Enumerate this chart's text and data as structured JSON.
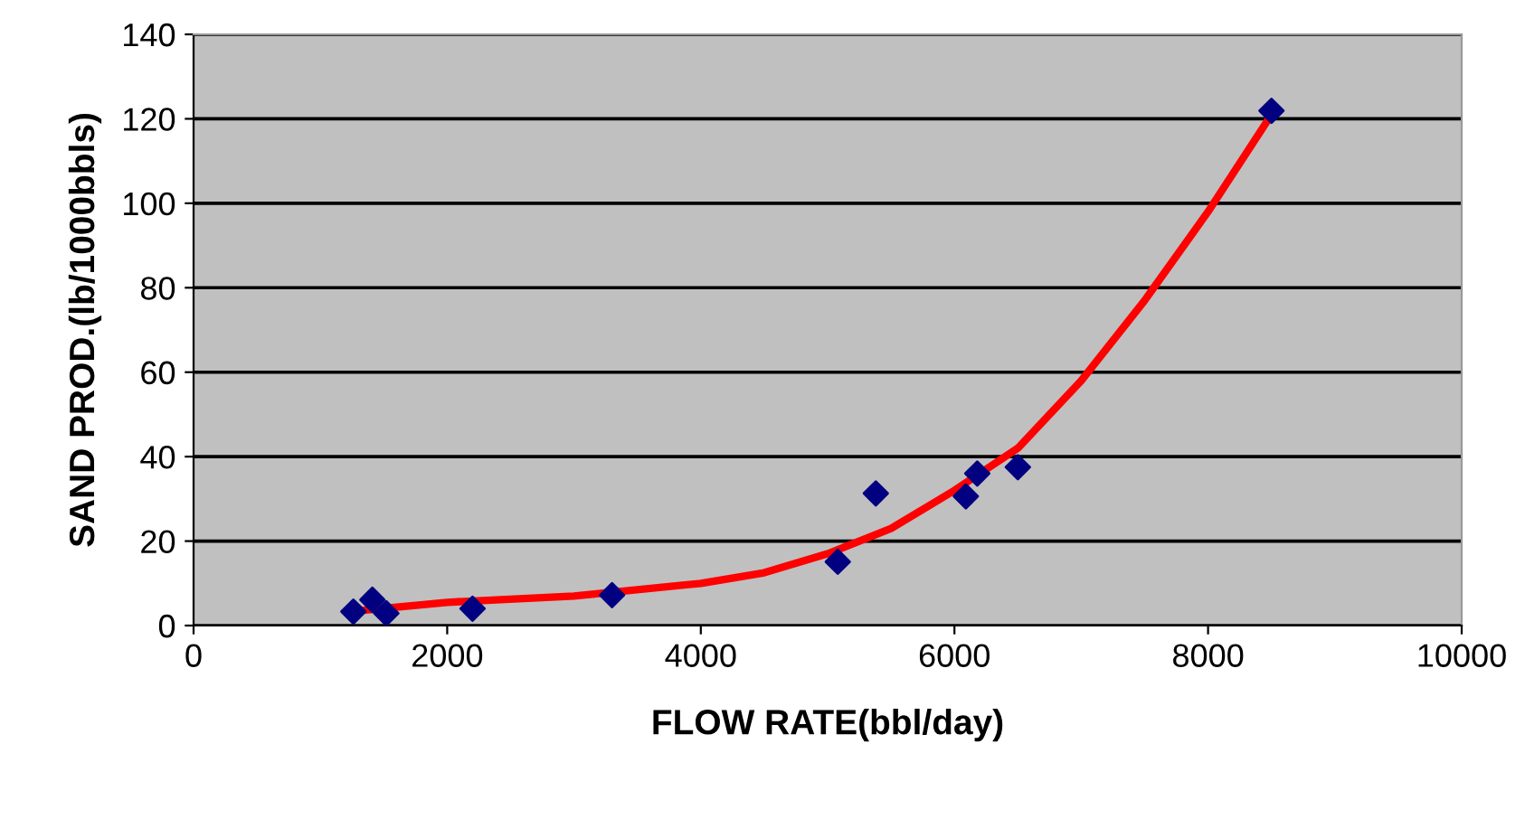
{
  "chart_data": {
    "type": "scatter",
    "xlabel": "FLOW RATE(bbl/day)",
    "ylabel": "SAND PROD.(lb/1000bbls)",
    "series": [
      {
        "color": "#000080",
        "marker": "diamond",
        "x": [
          1260,
          1410,
          1520,
          2200,
          3300,
          5080,
          5380,
          6090,
          6180,
          6500,
          8500
        ],
        "values": [
          3.3,
          6.1,
          2.9,
          4,
          7.2,
          15.1,
          31.3,
          30.6,
          36,
          37.5,
          121.9
        ]
      },
      {
        "type": "line",
        "color": "#ff0000",
        "marker": "none",
        "x": [
          1300,
          2000,
          3000,
          4000,
          4500,
          5000,
          5500,
          6000,
          6500,
          7000,
          7500,
          8000,
          8500
        ],
        "values": [
          3.5,
          5.5,
          7,
          10,
          12.5,
          17,
          23,
          32,
          42,
          58,
          77,
          98,
          121
        ]
      }
    ],
    "xlim": [
      0,
      10000
    ],
    "ylim": [
      0,
      140
    ],
    "xticks": [
      0,
      2000,
      4000,
      6000,
      8000,
      10000
    ],
    "yticks": [
      0,
      20,
      40,
      60,
      80,
      100,
      120,
      140
    ],
    "grid": "y",
    "legend": false
  }
}
